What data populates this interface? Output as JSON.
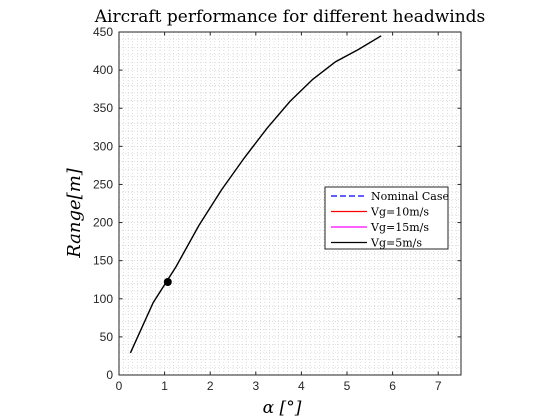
{
  "chart_data": {
    "type": "line",
    "title": "Aircraft performance for different headwinds",
    "xlabel": "α [°]",
    "ylabel": "Range[m]",
    "xlim": [
      0,
      7.5
    ],
    "ylim": [
      0,
      450
    ],
    "x_ticks": [
      0,
      1,
      2,
      3,
      4,
      5,
      6,
      7
    ],
    "y_ticks": [
      0,
      50,
      100,
      150,
      200,
      250,
      300,
      350,
      400,
      450
    ],
    "grid": "minor dotted",
    "legend_position": "right-center",
    "series": [
      {
        "name": "Nominal Case",
        "color": "#0000ff",
        "dash": "dashed",
        "x": [],
        "y": []
      },
      {
        "name": "Vg=10m/s",
        "color": "#ff0000",
        "dash": "solid",
        "x": [],
        "y": []
      },
      {
        "name": "Vg=15m/s",
        "color": "#ff00ff",
        "dash": "solid",
        "x": [],
        "y": []
      },
      {
        "name": "Vg=5m/s",
        "color": "#000000",
        "dash": "solid",
        "x": [
          0.25,
          0.75,
          1.25,
          1.75,
          2.25,
          2.75,
          3.25,
          3.75,
          4.25,
          4.75,
          5.25,
          5.75
        ],
        "y": [
          29,
          95,
          142,
          196,
          243,
          285,
          324,
          359,
          388,
          411,
          427,
          445
        ]
      }
    ],
    "marker": {
      "x": 1.07,
      "y": 122,
      "color": "#000000"
    }
  }
}
